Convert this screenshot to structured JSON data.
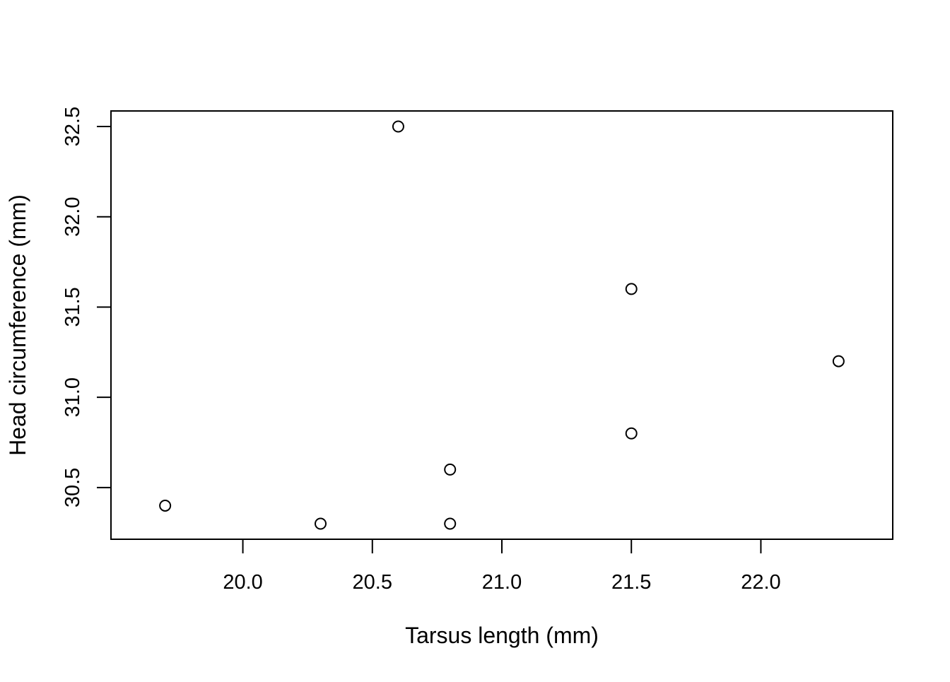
{
  "chart_data": {
    "type": "scatter",
    "title": "",
    "xlabel": "Tarsus length (mm)",
    "ylabel": "Head circumference (mm)",
    "xlim": [
      19.6,
      22.4
    ],
    "ylim": [
      30.3,
      32.5
    ],
    "x_ticks": [
      "20.0",
      "20.5",
      "21.0",
      "21.5",
      "22.0"
    ],
    "y_ticks": [
      "30.5",
      "31.0",
      "31.5",
      "32.0",
      "32.5"
    ],
    "grid": false,
    "marker": "open-circle",
    "points": [
      {
        "x": 19.7,
        "y": 30.4
      },
      {
        "x": 20.3,
        "y": 30.3
      },
      {
        "x": 20.6,
        "y": 32.5
      },
      {
        "x": 20.8,
        "y": 30.6
      },
      {
        "x": 20.8,
        "y": 30.3
      },
      {
        "x": 21.5,
        "y": 31.6
      },
      {
        "x": 21.5,
        "y": 30.8
      },
      {
        "x": 22.3,
        "y": 31.2
      }
    ]
  },
  "colors": {
    "axis": "#000000",
    "marker_stroke": "#000000",
    "background": "#ffffff"
  }
}
